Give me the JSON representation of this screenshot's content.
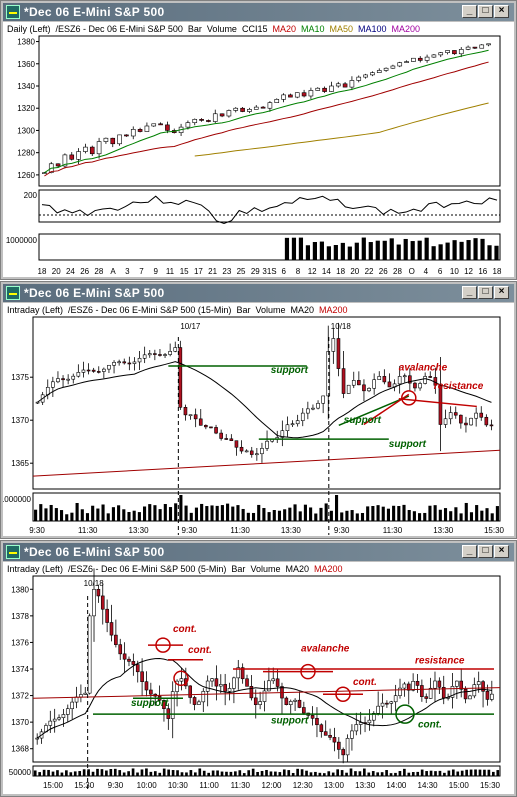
{
  "windows": [
    {
      "title": "*Dec 06  E-Mini S&P 500",
      "header": [
        "Daily (Left)",
        "/ESZ6 - Dec 06  E-Mini S&P 500",
        "Bar",
        "Volume",
        "CCI15",
        "MA20",
        "MA10",
        "MA50",
        "MA100",
        "MA200"
      ],
      "header_colors": [
        "#000",
        "#000",
        "#000",
        "#000",
        "#000",
        "#c00000",
        "#008000",
        "#a08000",
        "#000080",
        "#a000a0"
      ]
    },
    {
      "title": "*Dec 06  E-Mini S&P 500",
      "header": [
        "Intraday (Left)",
        "/ESZ6 - Dec 06  E-Mini S&P 500 (15-Min)",
        "Bar",
        "Volume",
        "MA20",
        "MA200"
      ],
      "header_colors": [
        "#000",
        "#000",
        "#000",
        "#000",
        "#000",
        "#c00000"
      ]
    },
    {
      "title": "*Dec 06  E-Mini S&P 500",
      "header": [
        "Intraday (Left)",
        "/ESZ6 - Dec 06  E-Mini S&P 500 (5-Min)",
        "Bar",
        "Volume",
        "MA20",
        "MA200"
      ],
      "header_colors": [
        "#000",
        "#000",
        "#000",
        "#000",
        "#000",
        "#c00000"
      ]
    }
  ],
  "colors": {
    "up": "#ffffff",
    "down": "#b01020",
    "support": "#006000",
    "resistance": "#c00000",
    "ma20_daily": "#008000",
    "ma_red": "#a00000",
    "ma50": "#a08000"
  },
  "chart_data": [
    {
      "type": "candlestick",
      "title": "Daily",
      "ylim": [
        1250,
        1385
      ],
      "yticks": [
        1260,
        1280,
        1300,
        1320,
        1340,
        1360,
        1380
      ],
      "xticks": [
        "18",
        "20",
        "24",
        "26",
        "28",
        "A",
        "3",
        "7",
        "9",
        "11",
        "15",
        "17",
        "21",
        "23",
        "25",
        "29",
        "31S",
        "6",
        "8",
        "12",
        "14",
        "18",
        "20",
        "22",
        "26",
        "28",
        "O",
        "4",
        "6",
        "10",
        "12",
        "16",
        "18"
      ],
      "closes": [
        1262,
        1270,
        1268,
        1278,
        1274,
        1281,
        1285,
        1279,
        1290,
        1293,
        1288,
        1296,
        1295,
        1301,
        1299,
        1304,
        1306,
        1305,
        1300,
        1298,
        1303,
        1307,
        1310,
        1309,
        1308,
        1315,
        1313,
        1318,
        1320,
        1317,
        1319,
        1321,
        1320,
        1325,
        1328,
        1332,
        1330,
        1334,
        1331,
        1336,
        1338,
        1335,
        1340,
        1342,
        1339,
        1345,
        1348,
        1350,
        1352,
        1354,
        1356,
        1358,
        1361,
        1362,
        1365,
        1363,
        1366,
        1368,
        1370,
        1372,
        1369,
        1373,
        1375,
        1374,
        1377,
        1378
      ],
      "cci": {
        "ylim": [
          -250,
          250
        ],
        "ytick": 200
      },
      "volume_label": "1000000"
    },
    {
      "type": "candlestick",
      "title": "15-Min",
      "ylim": [
        1362,
        1382
      ],
      "yticks": [
        1365,
        1370,
        1375
      ],
      "xticks": [
        "9:30",
        "11:30",
        "13:30",
        "9:30",
        "11:30",
        "13:30",
        "9:30",
        "11:30",
        "13:30",
        "15:30"
      ],
      "session_markers": [
        "10/17",
        "10/18"
      ],
      "annotations": [
        "support",
        "support",
        "support",
        "avalanche",
        "resistance"
      ],
      "volume_label": "1000000"
    },
    {
      "type": "candlestick",
      "title": "5-Min",
      "ylim": [
        1367,
        1381
      ],
      "yticks": [
        1368,
        1370,
        1372,
        1374,
        1376,
        1378,
        1380
      ],
      "xticks": [
        "15:00",
        "15:30",
        "9:30",
        "10:00",
        "10:30",
        "11:00",
        "11:30",
        "12:00",
        "12:30",
        "13:00",
        "13:30",
        "14:00",
        "14:30",
        "15:00",
        "15:30"
      ],
      "session_markers": [
        "10/18"
      ],
      "annotations": [
        "cont.",
        "cont.",
        "support",
        "avalanche",
        "cont.",
        "resistance",
        "support",
        "cont."
      ],
      "volume_label": "50000"
    }
  ]
}
